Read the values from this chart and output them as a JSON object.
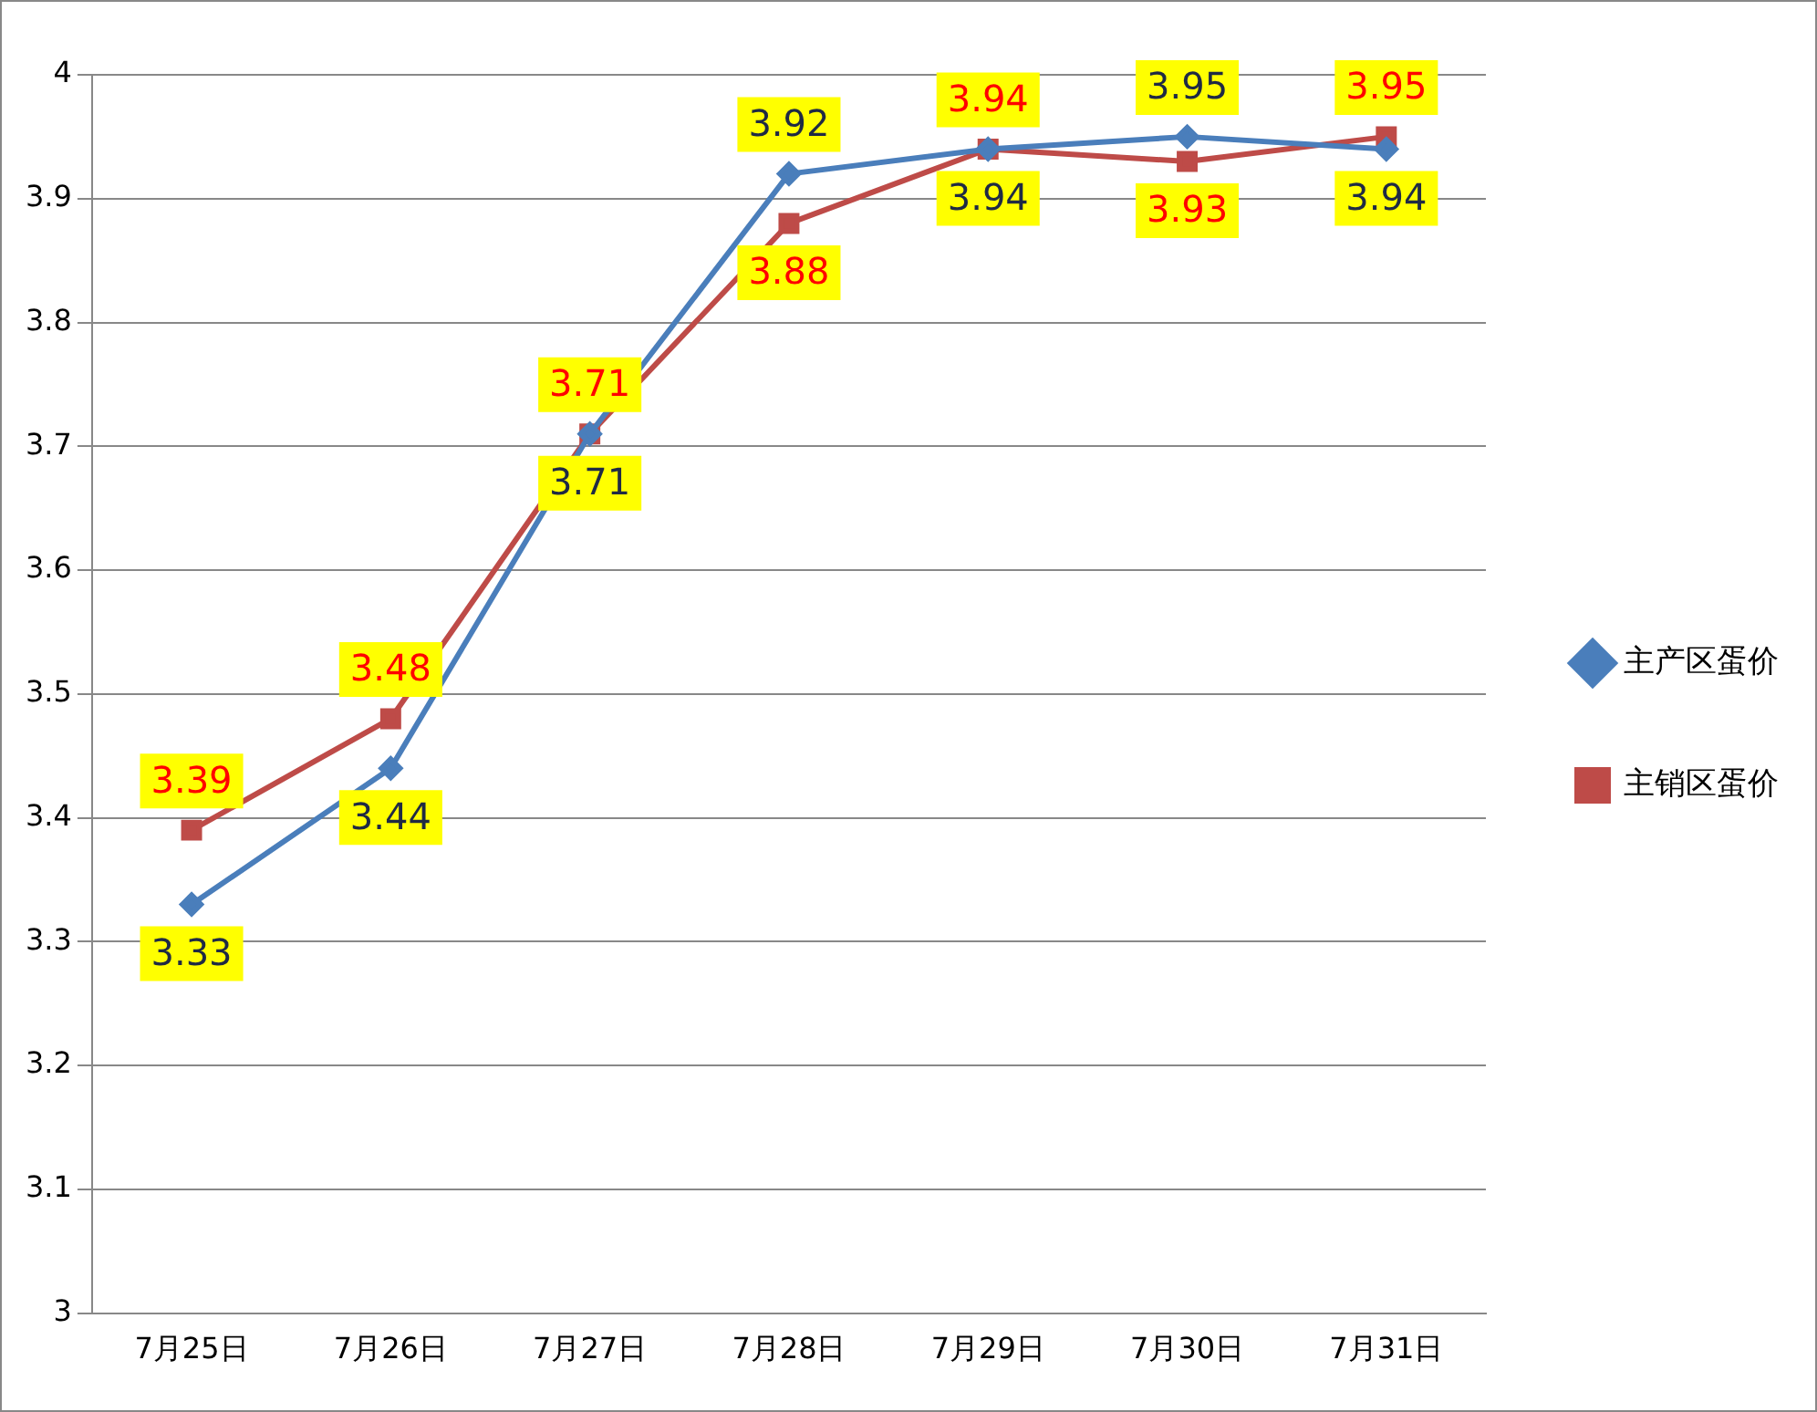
{
  "chart_data": {
    "type": "line",
    "categories": [
      "7月25日",
      "7月26日",
      "7月27日",
      "7月28日",
      "7月29日",
      "7月30日",
      "7月31日"
    ],
    "series": [
      {
        "name": "主产区蛋价",
        "color": "#4a7ebb",
        "marker": "diamond",
        "values": [
          3.33,
          3.44,
          3.71,
          3.92,
          3.94,
          3.95,
          3.94
        ]
      },
      {
        "name": "主销区蛋价",
        "color": "#be4b48",
        "marker": "square",
        "values": [
          3.39,
          3.48,
          3.71,
          3.88,
          3.94,
          3.93,
          3.95
        ]
      }
    ],
    "ylim": [
      3,
      4
    ],
    "yticks": [
      3,
      3.1,
      3.2,
      3.3,
      3.4,
      3.5,
      3.6,
      3.7,
      3.8,
      3.9,
      4
    ],
    "grid": "y",
    "legend": "right",
    "data_labels": true,
    "line_style": "solid"
  }
}
